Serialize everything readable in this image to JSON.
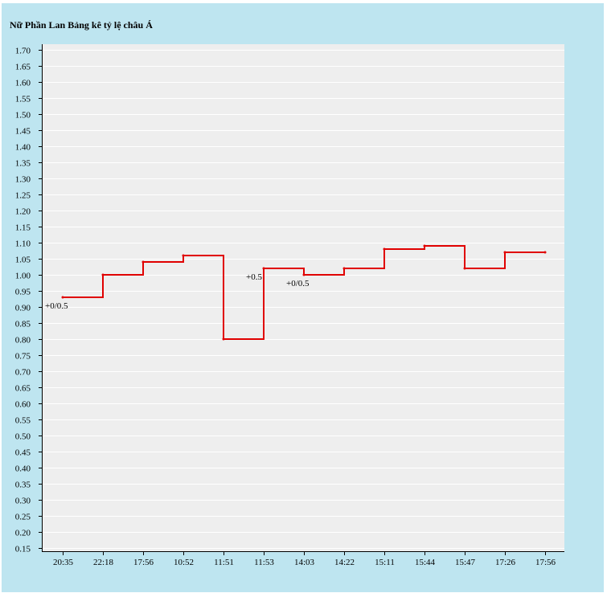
{
  "title": "Nữ Phần Lan Bảng kê tỷ lệ châu Á",
  "colors": {
    "frame": "#bee5f0",
    "plot": "#eeeeee",
    "grid": "#ffffff",
    "line": "#e00000"
  },
  "chart_data": {
    "type": "line",
    "step": true,
    "title": "Nữ Phần Lan Bảng kê tỷ lệ châu Á",
    "xlabel": "",
    "ylabel": "",
    "ylim": [
      0.15,
      1.7
    ],
    "ytick_step": 0.05,
    "grid": true,
    "categories": [
      "20:35",
      "22:18",
      "17:56",
      "10:52",
      "11:51",
      "11:53",
      "14:03",
      "14:22",
      "15:11",
      "15:44",
      "15:47",
      "17:26",
      "17:56"
    ],
    "series": [
      {
        "values": [
          0.93,
          1.0,
          1.04,
          1.06,
          0.8,
          1.02,
          1.0,
          1.02,
          1.08,
          1.09,
          1.02,
          1.07,
          1.07
        ]
      }
    ],
    "annotations": [
      {
        "index": 0,
        "text": "+0/0.5"
      },
      {
        "index": 5,
        "text": "+0.5"
      },
      {
        "index": 6,
        "text": "+0/0.5"
      }
    ]
  }
}
